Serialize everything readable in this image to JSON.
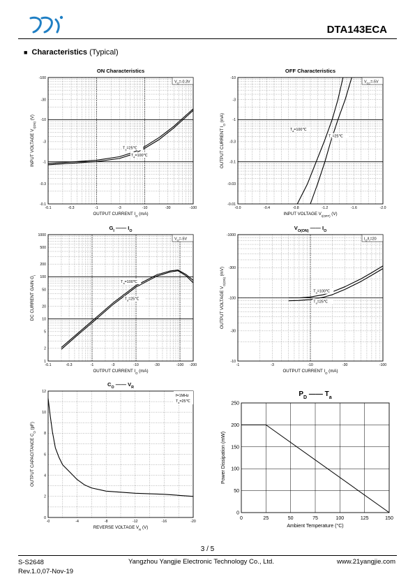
{
  "header": {
    "part_number": "DTA143ECA"
  },
  "section": {
    "bullet": "■",
    "title": "Characteristics",
    "subtitle": "(Typical)"
  },
  "footer": {
    "page": "3 / 5",
    "doc_id": "S-S2648",
    "revision": "Rev.1.0,07-Nov-19",
    "company": "Yangzhou Yangjie Electronic Technology Co., Ltd.",
    "website": "www.21yangjie.com"
  },
  "chart_data": [
    {
      "id": "on",
      "type": "line",
      "title_parts": [
        [
          "ON Characteristics",
          ""
        ]
      ],
      "xscale": "log",
      "yscale": "log",
      "xlim": [
        0.1,
        100
      ],
      "ylim": [
        0.1,
        100
      ],
      "x_reversed_sign": true,
      "y_reversed_sign": true,
      "xticks": [
        0.1,
        0.3,
        1,
        3,
        10,
        30,
        100
      ],
      "xtick_labels": [
        "-0.1",
        "-0.3",
        "-1",
        "-3",
        "-10",
        "-30",
        "-100"
      ],
      "yticks": [
        0.1,
        0.3,
        1,
        3,
        10,
        30,
        100
      ],
      "ytick_labels": [
        "-0.1",
        "-0.3",
        "-1",
        "-3",
        "-10",
        "-30",
        "-100"
      ],
      "xlabel_parts": [
        [
          "OUTPUT CURRENT   I",
          ""
        ],
        [
          "O",
          "sub"
        ],
        [
          "   (mA)",
          ""
        ]
      ],
      "ylabel_parts": [
        [
          "INPUT VOLTAGE   V",
          ""
        ],
        [
          "I(ON)",
          "sub"
        ],
        [
          "   (V)",
          ""
        ]
      ],
      "legend_box": [
        [
          "V",
          ""
        ],
        [
          "O",
          "sub"
        ],
        [
          "=-0.3V",
          ""
        ]
      ],
      "heavy_y": [
        1,
        10
      ],
      "heavy_x": [
        1,
        10
      ],
      "series": [
        {
          "x": [
            0.1,
            0.3,
            1,
            3,
            6,
            10,
            20,
            40,
            70,
            100
          ],
          "y": [
            0.91,
            0.99,
            1.09,
            1.32,
            1.7,
            2.3,
            3.8,
            7.0,
            12.5,
            18.0
          ]
        },
        {
          "x": [
            0.1,
            0.3,
            1,
            3,
            6,
            10,
            20,
            40,
            70,
            100
          ],
          "y": [
            0.85,
            0.92,
            1.01,
            1.2,
            1.55,
            2.1,
            3.4,
            6.4,
            11.4,
            16.6
          ]
        }
      ],
      "annotations": [
        {
          "x": 3.5,
          "y": 2.0,
          "parts": [
            [
              "T",
              ""
            ],
            [
              "a",
              "sub"
            ],
            [
              "=25",
              ""
            ],
            [
              "℃",
              ""
            ]
          ]
        },
        {
          "x": 5.2,
          "y": 1.35,
          "parts": [
            [
              "T",
              ""
            ],
            [
              "a",
              "sub"
            ],
            [
              "=100",
              ""
            ],
            [
              "℃",
              ""
            ]
          ]
        }
      ]
    },
    {
      "id": "off",
      "type": "line",
      "title_parts": [
        [
          "OFF Characteristics",
          ""
        ]
      ],
      "xscale": "linear",
      "yscale": "log",
      "xlim": [
        0,
        2.0
      ],
      "ylim": [
        0.01,
        10
      ],
      "x_reversed_sign": true,
      "y_reversed_sign": false,
      "xticks": [
        0,
        0.4,
        0.8,
        1.2,
        1.6,
        2.0
      ],
      "xtick_labels": [
        "-0.0",
        "-0.4",
        "-0.8",
        "-1.2",
        "-1.6",
        "-2.0"
      ],
      "x_minor_step": 0.1,
      "yticks": [
        0.01,
        0.03,
        0.1,
        0.3,
        1,
        3,
        10
      ],
      "ytick_labels": [
        "-0.01",
        "-0.03",
        "-0.1",
        "-0.3",
        "-1",
        "-3",
        "-10"
      ],
      "xlabel_parts": [
        [
          "INPUT VOLTAGE   V",
          ""
        ],
        [
          "I(OFF)",
          "sub"
        ],
        [
          "   (V)",
          ""
        ]
      ],
      "ylabel_parts": [
        [
          "OUTPUT CURRENT   I",
          ""
        ],
        [
          "O",
          "sub"
        ],
        [
          "   (mA)",
          ""
        ]
      ],
      "legend_box": [
        [
          "V",
          ""
        ],
        [
          "CC",
          "sub"
        ],
        [
          "=-5V",
          ""
        ]
      ],
      "heavy_y": [
        0.1,
        1
      ],
      "heavy_x": [],
      "series": [
        {
          "x": [
            0.82,
            0.96,
            1.08,
            1.19,
            1.3,
            1.38,
            1.45
          ],
          "y": [
            0.01,
            0.03,
            0.1,
            0.3,
            1,
            3,
            10
          ]
        },
        {
          "x": [
            1.0,
            1.1,
            1.2,
            1.28,
            1.38,
            1.48,
            1.57
          ],
          "y": [
            0.01,
            0.03,
            0.1,
            0.3,
            1,
            3,
            10
          ]
        }
      ],
      "annotations": [
        {
          "x": 0.72,
          "y": 0.55,
          "parts": [
            [
              "T",
              ""
            ],
            [
              "a",
              "sub"
            ],
            [
              "=100",
              ""
            ],
            [
              "℃",
              ""
            ]
          ]
        },
        {
          "x": 1.25,
          "y": 0.38,
          "parts": [
            [
              "T",
              ""
            ],
            [
              "a",
              "sub"
            ],
            [
              "=25",
              ""
            ],
            [
              "℃",
              ""
            ]
          ]
        }
      ]
    },
    {
      "id": "gi",
      "type": "line",
      "title_parts": [
        [
          "G",
          ""
        ],
        [
          "I",
          "sub"
        ],
        [
          "  —— ",
          ""
        ],
        [
          "I",
          ""
        ],
        [
          "O",
          "sub"
        ]
      ],
      "xscale": "log",
      "yscale": "log",
      "xlim": [
        0.1,
        200
      ],
      "ylim": [
        1,
        1000
      ],
      "x_reversed_sign": true,
      "y_reversed_sign": false,
      "xticks": [
        0.1,
        0.3,
        1,
        3,
        10,
        30,
        100,
        200
      ],
      "xtick_labels": [
        "-0.1",
        "-0.3",
        "-1",
        "-3",
        "-10",
        "-30",
        "-100",
        "-200"
      ],
      "yticks": [
        1,
        2,
        5,
        10,
        20,
        50,
        100,
        200,
        500,
        1000
      ],
      "ytick_labels": [
        "1",
        "2",
        "5",
        "10",
        "20",
        "50",
        "100",
        "200",
        "500",
        "1000"
      ],
      "xlabel_parts": [
        [
          "OUTPUT CURRENT   I",
          ""
        ],
        [
          "O",
          "sub"
        ],
        [
          "   (mA)",
          ""
        ]
      ],
      "ylabel_parts": [
        [
          "DC CURRENT GAIN   G",
          ""
        ],
        [
          "I",
          "sub"
        ]
      ],
      "legend_box": [
        [
          "V",
          ""
        ],
        [
          "O",
          "sub"
        ],
        [
          "=-5V",
          ""
        ]
      ],
      "heavy_y": [
        10,
        100
      ],
      "heavy_x": [
        1,
        10,
        100
      ],
      "series": [
        {
          "x": [
            0.2,
            0.5,
            1,
            3,
            10,
            30,
            60,
            90,
            140,
            200
          ],
          "y": [
            2.1,
            4.8,
            8.9,
            24,
            62,
            112,
            138,
            145,
            112,
            82
          ]
        },
        {
          "x": [
            0.2,
            0.5,
            1,
            3,
            10,
            30,
            60,
            90,
            140,
            200
          ],
          "y": [
            1.9,
            4.4,
            8.1,
            22,
            57,
            104,
            130,
            139,
            104,
            72
          ]
        }
      ],
      "annotations": [
        {
          "x": 4.5,
          "y": 72,
          "parts": [
            [
              "T",
              ""
            ],
            [
              "a",
              "sub"
            ],
            [
              "=100",
              ""
            ],
            [
              "℃",
              ""
            ]
          ]
        },
        {
          "x": 5.5,
          "y": 28,
          "parts": [
            [
              "T",
              ""
            ],
            [
              "a",
              "sub"
            ],
            [
              "=25",
              ""
            ],
            [
              "℃",
              ""
            ]
          ]
        }
      ]
    },
    {
      "id": "vo",
      "type": "line",
      "title_parts": [
        [
          "V",
          ""
        ],
        [
          "O(ON)",
          "sub"
        ],
        [
          "  —— ",
          ""
        ],
        [
          "I",
          ""
        ],
        [
          "O",
          "sub"
        ]
      ],
      "xscale": "log",
      "yscale": "log",
      "xlim": [
        1,
        100
      ],
      "ylim": [
        10,
        1000
      ],
      "x_reversed_sign": true,
      "y_reversed_sign": true,
      "xticks": [
        1,
        3,
        10,
        30,
        100
      ],
      "xtick_labels": [
        "-1",
        "-3",
        "-10",
        "-30",
        "-100"
      ],
      "yticks": [
        10,
        30,
        100,
        300,
        1000
      ],
      "ytick_labels": [
        "-10",
        "-30",
        "-100",
        "-300",
        "-1000"
      ],
      "xlabel_parts": [
        [
          "OUTPUT CURRENT   I",
          ""
        ],
        [
          "O",
          "sub"
        ],
        [
          "   (mA)",
          ""
        ]
      ],
      "ylabel_parts": [
        [
          "OUTPUT VOLTAGE   V",
          ""
        ],
        [
          "O(ON)",
          "sub"
        ],
        [
          "   (mV)",
          ""
        ]
      ],
      "legend_box": [
        [
          "I",
          ""
        ],
        [
          "O",
          "sub"
        ],
        [
          "/I",
          ""
        ],
        [
          "I",
          "sub"
        ],
        [
          "=20",
          ""
        ]
      ],
      "heavy_y": [
        100
      ],
      "heavy_x": [
        10
      ],
      "series": [
        {
          "x": [
            5,
            7,
            10,
            15,
            20,
            30,
            50,
            70,
            100
          ],
          "y": [
            100,
            100,
            103,
            112,
            124,
            150,
            200,
            250,
            320
          ]
        },
        {
          "x": [
            5,
            7,
            10,
            15,
            20,
            30,
            50,
            70,
            100
          ],
          "y": [
            90,
            91,
            94,
            102,
            112,
            136,
            182,
            228,
            290
          ]
        }
      ],
      "annotations": [
        {
          "x": 11,
          "y": 122,
          "parts": [
            [
              "T",
              ""
            ],
            [
              "a",
              "sub"
            ],
            [
              "=100",
              ""
            ],
            [
              "℃",
              ""
            ]
          ]
        },
        {
          "x": 11,
          "y": 84,
          "parts": [
            [
              "T",
              ""
            ],
            [
              "a",
              "sub"
            ],
            [
              "=25",
              ""
            ],
            [
              "℃",
              ""
            ]
          ]
        }
      ]
    },
    {
      "id": "co",
      "type": "line",
      "title_parts": [
        [
          "C",
          ""
        ],
        [
          "O",
          "sub"
        ],
        [
          "  —— ",
          ""
        ],
        [
          "V",
          ""
        ],
        [
          "R",
          "sub"
        ]
      ],
      "xscale": "linear",
      "yscale": "linear",
      "xlim": [
        0,
        20
      ],
      "ylim": [
        0,
        12
      ],
      "x_reversed_sign": true,
      "y_reversed_sign": false,
      "xticks": [
        0,
        4,
        8,
        12,
        16,
        20
      ],
      "xtick_labels": [
        "-0",
        "-4",
        "-8",
        "-12",
        "-16",
        "-20"
      ],
      "x_minor_step": 2,
      "yticks": [
        0,
        2,
        4,
        6,
        8,
        10,
        12
      ],
      "ytick_labels": [
        "0",
        "2",
        "4",
        "6",
        "8",
        "10",
        "12"
      ],
      "y_minor_step": 1,
      "xlabel_parts": [
        [
          "REVERSE  VOLTAGE   V",
          ""
        ],
        [
          "R",
          "sub"
        ],
        [
          "   (V)",
          ""
        ]
      ],
      "ylabel_parts": [
        [
          "OUTPUT CAPACITANCE   C",
          ""
        ],
        [
          "O",
          "sub"
        ],
        [
          "   (pF)",
          ""
        ]
      ],
      "legend_lines": [
        [
          [
            "f=1MHz",
            ""
          ]
        ],
        [
          [
            "T",
            ""
          ],
          [
            "a",
            "sub"
          ],
          [
            "=25",
            ""
          ],
          [
            "℃",
            ""
          ]
        ]
      ],
      "heavy_y": [],
      "heavy_x": [],
      "series": [
        {
          "x": [
            0,
            0.3,
            0.6,
            1,
            1.5,
            2,
            3,
            4,
            5,
            6,
            8,
            10,
            12,
            16,
            20
          ],
          "y": [
            11.3,
            9.6,
            8.1,
            6.6,
            5.7,
            5.0,
            4.3,
            3.6,
            3.1,
            2.8,
            2.5,
            2.4,
            2.3,
            2.2,
            2.0
          ]
        }
      ],
      "annotations": []
    },
    {
      "id": "pd",
      "type": "line",
      "title_parts": [
        [
          "P",
          ""
        ],
        [
          "D",
          "sub"
        ],
        [
          "   —— ",
          ""
        ],
        [
          "T",
          ""
        ],
        [
          "a",
          "sub"
        ]
      ],
      "xscale": "linear",
      "yscale": "linear",
      "xlim": [
        0,
        150
      ],
      "ylim": [
        0,
        250
      ],
      "x_reversed_sign": false,
      "y_reversed_sign": false,
      "xticks": [
        0,
        25,
        50,
        75,
        100,
        125,
        150
      ],
      "xtick_labels": [
        "0",
        "25",
        "50",
        "75",
        "100",
        "125",
        "150"
      ],
      "yticks": [
        0,
        50,
        100,
        150,
        200,
        250
      ],
      "ytick_labels": [
        "0",
        "50",
        "100",
        "150",
        "200",
        "250"
      ],
      "y_grid": [
        50,
        100,
        150,
        200
      ],
      "xlabel_parts": [
        [
          "Ambient Temperature (°C)",
          ""
        ]
      ],
      "ylabel_parts": [
        [
          "Power Dissipation  (mW)",
          ""
        ]
      ],
      "heavy_y": [],
      "heavy_x": [],
      "series": [
        {
          "x": [
            0,
            25,
            150
          ],
          "y": [
            200,
            200,
            0
          ]
        }
      ],
      "annotations": []
    }
  ]
}
